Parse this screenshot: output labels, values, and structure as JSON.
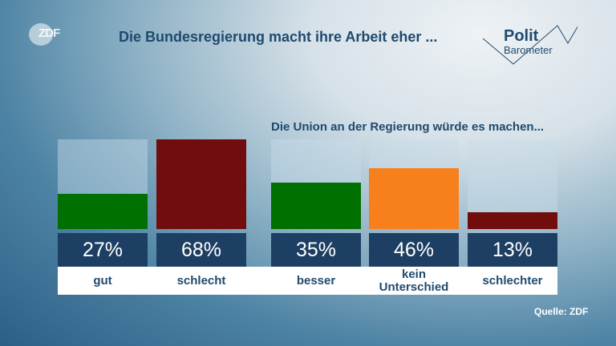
{
  "header": {
    "logo": "ZDF",
    "title": "Die Bundesregierung macht ihre Arbeit eher ...",
    "brand_line1": "Polit",
    "brand_line2": "Barometer"
  },
  "source": "Quelle: ZDF",
  "chart_data": [
    {
      "type": "bar",
      "title": "Die Bundesregierung macht ihre Arbeit eher ...",
      "categories": [
        "gut",
        "schlecht"
      ],
      "values": [
        27,
        68
      ],
      "value_labels": [
        "27%",
        "68%"
      ],
      "colors": [
        "#007000",
        "#720d0e"
      ],
      "ylim": [
        0,
        68
      ]
    },
    {
      "type": "bar",
      "title": "Die Union an der Regierung würde es machen...",
      "categories": [
        "besser",
        "kein Unterschied",
        "schlechter"
      ],
      "values": [
        35,
        46,
        13
      ],
      "value_labels": [
        "35%",
        "46%",
        "13%"
      ],
      "colors": [
        "#007000",
        "#f8801c",
        "#720d0e"
      ],
      "ylim": [
        0,
        68
      ]
    }
  ]
}
